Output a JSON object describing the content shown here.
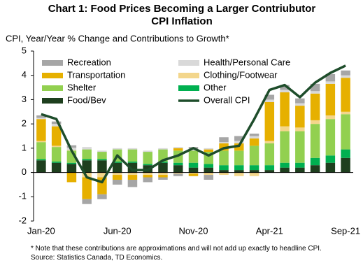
{
  "chart_data": {
    "type": "bar",
    "title": "Chart 1: Food Prices Becoming a Larger Contriubutor CPI Inflation",
    "subtitle": "CPI, Year/Year % Change and Contributions to Growth*",
    "note": "* Note that these contributions are approximations and will not add up exactly to headline CPI. Source: Statistics Canada, TD Economics.",
    "categories": [
      "Jan-20",
      null,
      null,
      null,
      null,
      "Jun-20",
      null,
      null,
      null,
      null,
      "Nov-20",
      null,
      null,
      null,
      null,
      "Apr-21",
      null,
      null,
      null,
      null,
      "Sep-21"
    ],
    "ylim": [
      -2,
      5
    ],
    "yticks": [
      -2,
      -1,
      0,
      1,
      2,
      3,
      4,
      5
    ],
    "series": [
      {
        "name": "Recreation",
        "type": "bar",
        "color": "#a6a6a6",
        "values": [
          0.1,
          0.1,
          0.1,
          -0.2,
          -0.2,
          -0.2,
          -0.3,
          -0.2,
          -0.1,
          -0.1,
          0.1,
          -0.2,
          0.2,
          0.2,
          0.1,
          0.2,
          0.2,
          0.2,
          0.3,
          0.3,
          0.2
        ]
      },
      {
        "name": "Health/Personal Care",
        "type": "bar",
        "color": "#d9d9d9",
        "values": [
          0.05,
          0.1,
          0.1,
          0.1,
          0.05,
          0.05,
          0.05,
          0.05,
          0.05,
          0.05,
          0.05,
          0.05,
          0.05,
          0.1,
          0.1,
          0.1,
          0.1,
          0.1,
          0.1,
          0.1,
          0.1
        ]
      },
      {
        "name": "Transportation",
        "type": "bar",
        "color": "#e6b000",
        "values": [
          0.9,
          0.8,
          -0.4,
          -0.9,
          -0.7,
          -0.2,
          -0.2,
          -0.1,
          -0.1,
          0.1,
          -0.1,
          0.1,
          0.3,
          0.3,
          0.3,
          1.6,
          1.4,
          0.9,
          1.1,
          1.3,
          1.4
        ]
      },
      {
        "name": "Clothing/Footwear",
        "type": "bar",
        "color": "#f3d68c",
        "values": [
          0.05,
          0.05,
          0.02,
          -0.2,
          -0.2,
          -0.1,
          -0.1,
          -0.1,
          -0.1,
          -0.05,
          -0.05,
          -0.1,
          -0.1,
          -0.15,
          -0.15,
          0.1,
          0.2,
          0.15,
          0.15,
          0.15,
          0.1
        ]
      },
      {
        "name": "Shelter",
        "type": "bar",
        "color": "#92d050",
        "values": [
          0.7,
          0.6,
          0.5,
          0.4,
          0.3,
          0.5,
          0.5,
          0.5,
          0.5,
          0.5,
          0.5,
          0.5,
          0.6,
          0.6,
          0.8,
          0.9,
          1.3,
          1.3,
          1.4,
          1.5,
          1.45
        ]
      },
      {
        "name": "Other",
        "type": "bar",
        "color": "#00b050",
        "values": [
          0.05,
          0.05,
          0.05,
          0.05,
          0.05,
          0.05,
          0.05,
          0.05,
          0.05,
          0.1,
          0.2,
          0.15,
          0.2,
          0.2,
          0.2,
          0.2,
          0.2,
          0.2,
          0.3,
          0.3,
          0.35
        ]
      },
      {
        "name": "Food/Bev",
        "type": "bar",
        "color": "#1e3f1e",
        "values": [
          0.5,
          0.4,
          0.35,
          0.5,
          0.5,
          0.4,
          0.4,
          0.3,
          0.4,
          0.3,
          0.2,
          0.2,
          0.1,
          0.1,
          0.1,
          0.1,
          0.2,
          0.2,
          0.3,
          0.4,
          0.6
        ]
      },
      {
        "name": "Overall CPI",
        "type": "line",
        "color": "#1e4d2b",
        "values": [
          2.4,
          2.2,
          0.9,
          -0.2,
          -0.4,
          0.7,
          0.1,
          0.1,
          0.5,
          0.7,
          1.0,
          0.7,
          1.0,
          1.1,
          2.2,
          3.4,
          3.6,
          3.1,
          3.7,
          4.1,
          4.4
        ]
      }
    ]
  }
}
